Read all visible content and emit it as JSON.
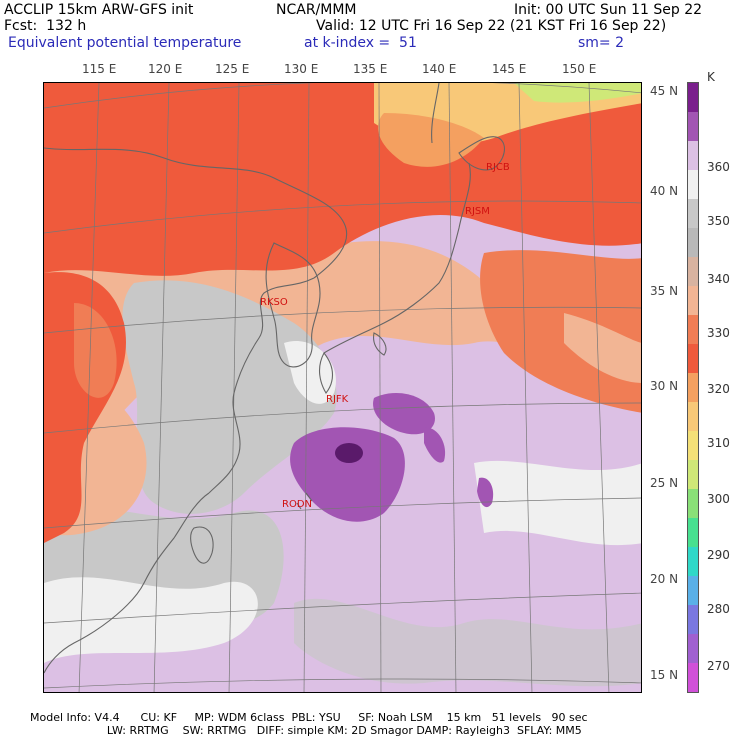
{
  "header": {
    "model_title": "ACCLIP 15km ARW-GFS init",
    "org": "NCAR/MMM",
    "init": "Init: 00 UTC Sun 11 Sep 22",
    "fcst": "Fcst:  132 h",
    "valid": "Valid: 12 UTC Fri 16 Sep 22 (21 KST Fri 16 Sep 22)",
    "field": "Equivalent potential temperature",
    "level": "at k-index =  51",
    "smoothing": "sm= 2"
  },
  "map": {
    "lon_labels": [
      "115 E",
      "120 E",
      "125 E",
      "130 E",
      "135 E",
      "140 E",
      "145 E",
      "150 E"
    ],
    "lat_labels": [
      "45 N",
      "40 N",
      "35 N",
      "30 N",
      "25 N",
      "20 N",
      "15 N"
    ],
    "stations": [
      {
        "id": "RJCB"
      },
      {
        "id": "RJSM"
      },
      {
        "id": "RKSO"
      },
      {
        "id": "RJFK"
      },
      {
        "id": "RODN"
      }
    ]
  },
  "colorbar": {
    "unit": "K",
    "labels": [
      "360",
      "350",
      "340",
      "330",
      "320",
      "310",
      "300",
      "290",
      "280",
      "270"
    ],
    "colors": [
      "#7a1f8c",
      "#a255b3",
      "#dcc0e4",
      "#f0f0f0",
      "#c8c8c8",
      "#b9b9b9",
      "#d8b3a0",
      "#f2b594",
      "#f07d55",
      "#ef5a3c",
      "#f4a060",
      "#f8c878",
      "#f4e078",
      "#cfe878",
      "#8ae078",
      "#48e090",
      "#30d8c8",
      "#5ab0e8",
      "#7a78e0",
      "#a060d0",
      "#d050d8"
    ]
  },
  "footer": {
    "line1": "Model Info: V4.4      CU: KF     MP: WDM 6class  PBL: YSU     SF: Noah LSM    15 km   51 levels   90 sec",
    "line2": "                      LW: RRTMG    SW: RRTMG   DIFF: simple KM: 2D Smagor DAMP: Rayleigh3  SFLAY: MM5"
  }
}
